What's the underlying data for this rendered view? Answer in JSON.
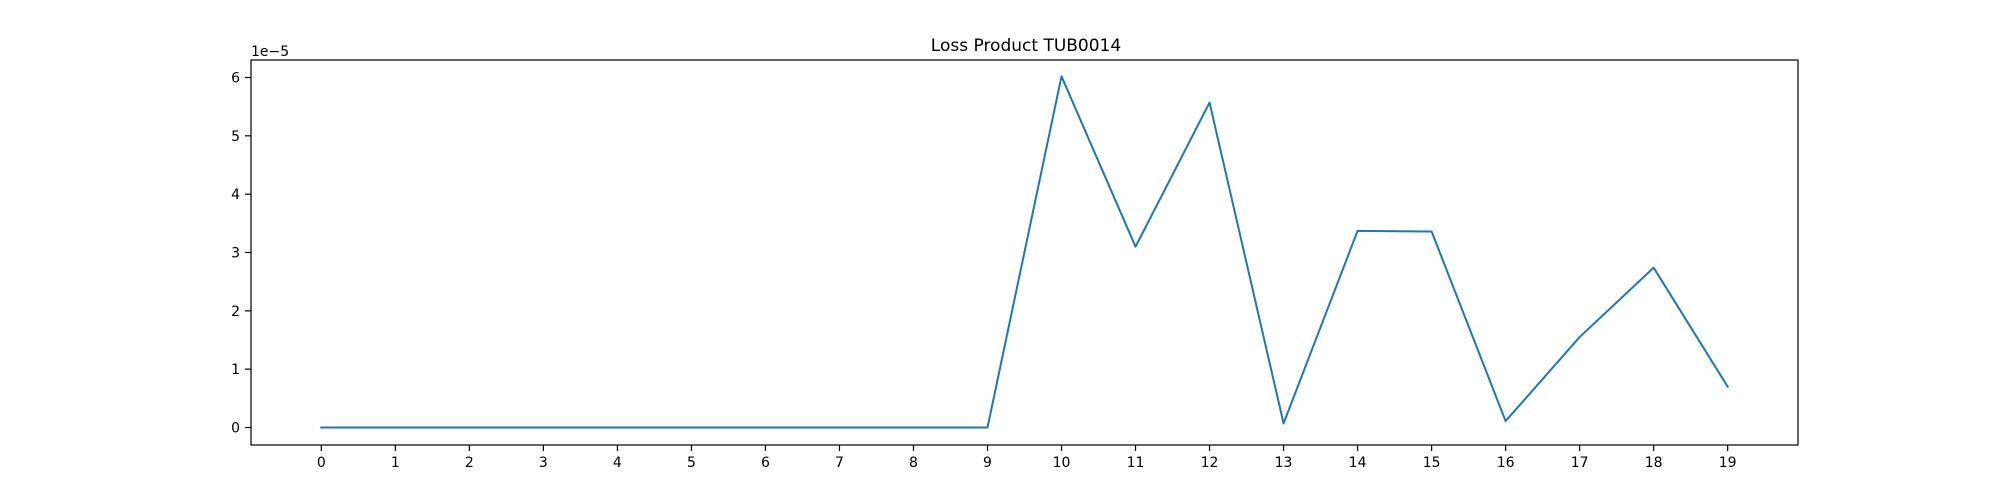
{
  "chart_data": {
    "type": "line",
    "title": "Loss Product TUB0014",
    "xlabel": "",
    "ylabel": "",
    "y_offset_label": "1e−5",
    "x": [
      0,
      1,
      2,
      3,
      4,
      5,
      6,
      7,
      8,
      9,
      10,
      11,
      12,
      13,
      14,
      15,
      16,
      17,
      18,
      19
    ],
    "x_tick_labels": [
      "0",
      "1",
      "2",
      "3",
      "4",
      "5",
      "6",
      "7",
      "8",
      "9",
      "10",
      "11",
      "12",
      "13",
      "14",
      "15",
      "16",
      "17",
      "18",
      "19"
    ],
    "y_ticks": [
      0,
      1,
      2,
      3,
      4,
      5,
      6
    ],
    "y_tick_labels": [
      "0",
      "1",
      "2",
      "3",
      "4",
      "5",
      "6"
    ],
    "xlim": [
      -0.95,
      19.95
    ],
    "ylim": [
      -0.3,
      6.3
    ],
    "grid": false,
    "legend": "none",
    "series": [
      {
        "color": "#1f77b4",
        "values": [
          0,
          0,
          0,
          0,
          0,
          0,
          0,
          0,
          0,
          0,
          6.02,
          3.1,
          5.57,
          0.07,
          3.37,
          3.36,
          0.11,
          1.55,
          2.74,
          0.7
        ]
      }
    ]
  }
}
